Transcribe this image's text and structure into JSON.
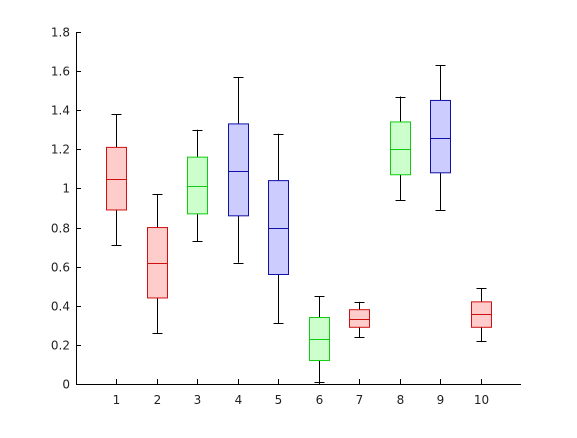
{
  "chart_data": {
    "type": "boxplot",
    "title": "",
    "xlabel": "",
    "ylabel": "",
    "ylim": [
      0,
      1.8
    ],
    "xlim": [
      0,
      11
    ],
    "y_ticks": [
      0,
      0.2,
      0.4,
      0.6,
      0.8,
      1,
      1.2,
      1.4,
      1.6,
      1.8
    ],
    "y_tick_labels": [
      "0",
      "0.2",
      "0.4",
      "0.6",
      "0.8",
      "1",
      "1.2",
      "1.4",
      "1.6",
      "1.8"
    ],
    "categories": [
      "1",
      "2",
      "3",
      "4",
      "5",
      "6",
      "7",
      "8",
      "9",
      "10"
    ],
    "grid": false,
    "colors": {
      "red": {
        "fill": "#ffcccc",
        "stroke": "#d01010"
      },
      "green": {
        "fill": "#ccffcc",
        "stroke": "#10cc10"
      },
      "blue": {
        "fill": "#ccccff",
        "stroke": "#1010a8"
      }
    },
    "boxes": [
      {
        "x": 1,
        "color": "red",
        "whisker_low": 0.71,
        "q1": 0.89,
        "median": 1.05,
        "q3": 1.21,
        "whisker_high": 1.38
      },
      {
        "x": 2,
        "color": "red",
        "whisker_low": 0.26,
        "q1": 0.44,
        "median": 0.62,
        "q3": 0.8,
        "whisker_high": 0.97
      },
      {
        "x": 3,
        "color": "green",
        "whisker_low": 0.73,
        "q1": 0.87,
        "median": 1.01,
        "q3": 1.16,
        "whisker_high": 1.3
      },
      {
        "x": 4,
        "color": "blue",
        "whisker_low": 0.62,
        "q1": 0.86,
        "median": 1.09,
        "q3": 1.33,
        "whisker_high": 1.57
      },
      {
        "x": 5,
        "color": "blue",
        "whisker_low": 0.31,
        "q1": 0.56,
        "median": 0.8,
        "q3": 1.04,
        "whisker_high": 1.28
      },
      {
        "x": 6,
        "color": "green",
        "whisker_low": 0.01,
        "q1": 0.12,
        "median": 0.23,
        "q3": 0.34,
        "whisker_high": 0.45
      },
      {
        "x": 7,
        "color": "red",
        "whisker_low": 0.24,
        "q1": 0.29,
        "median": 0.33,
        "q3": 0.38,
        "whisker_high": 0.42
      },
      {
        "x": 8,
        "color": "green",
        "whisker_low": 0.94,
        "q1": 1.07,
        "median": 1.2,
        "q3": 1.34,
        "whisker_high": 1.47
      },
      {
        "x": 9,
        "color": "blue",
        "whisker_low": 0.89,
        "q1": 1.08,
        "median": 1.26,
        "q3": 1.45,
        "whisker_high": 1.63
      },
      {
        "x": 10,
        "color": "red",
        "whisker_low": 0.22,
        "q1": 0.29,
        "median": 0.36,
        "q3": 0.42,
        "whisker_high": 0.49
      }
    ]
  }
}
